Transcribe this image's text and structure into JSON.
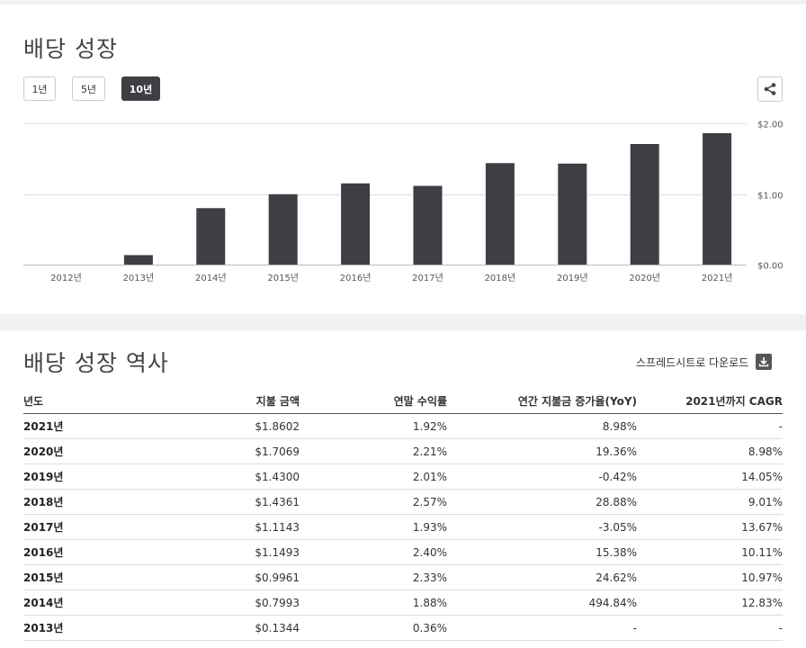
{
  "growth": {
    "title": "배당 성장",
    "periods": [
      {
        "label": "1년",
        "active": false
      },
      {
        "label": "5년",
        "active": false
      },
      {
        "label": "10년",
        "active": true
      }
    ],
    "share_icon": "share-icon"
  },
  "chart_data": {
    "type": "bar",
    "categories": [
      "2012년",
      "2013년",
      "2014년",
      "2015년",
      "2016년",
      "2017년",
      "2018년",
      "2019년",
      "2020년",
      "2021년"
    ],
    "values": [
      0,
      0.1344,
      0.7993,
      0.9961,
      1.1493,
      1.1143,
      1.4361,
      1.43,
      1.7069,
      1.8602
    ],
    "ylim": [
      0,
      2
    ],
    "yticks": [
      0,
      1,
      2
    ],
    "ytick_labels": [
      "$0.00",
      "$1.00",
      "$2.00"
    ],
    "y_axis_side": "right",
    "grid": true,
    "bar_color": "#3f3e44"
  },
  "history": {
    "title": "배당 성장 역사",
    "download_label": "스프레드시트로 다운로드",
    "download_icon": "download-icon",
    "columns": [
      "년도",
      "지불 금액",
      "연말 수익률",
      "연간 지불금 증가율(YoY)",
      "2021년까지 CAGR"
    ],
    "rows": [
      [
        "2021년",
        "$1.8602",
        "1.92%",
        "8.98%",
        "-"
      ],
      [
        "2020년",
        "$1.7069",
        "2.21%",
        "19.36%",
        "8.98%"
      ],
      [
        "2019년",
        "$1.4300",
        "2.01%",
        "-0.42%",
        "14.05%"
      ],
      [
        "2018년",
        "$1.4361",
        "2.57%",
        "28.88%",
        "9.01%"
      ],
      [
        "2017년",
        "$1.1143",
        "1.93%",
        "-3.05%",
        "13.67%"
      ],
      [
        "2016년",
        "$1.1493",
        "2.40%",
        "15.38%",
        "10.11%"
      ],
      [
        "2015년",
        "$0.9961",
        "2.33%",
        "24.62%",
        "10.97%"
      ],
      [
        "2014년",
        "$0.7993",
        "1.88%",
        "494.84%",
        "12.83%"
      ],
      [
        "2013년",
        "$0.1344",
        "0.36%",
        "-",
        "-"
      ]
    ]
  }
}
